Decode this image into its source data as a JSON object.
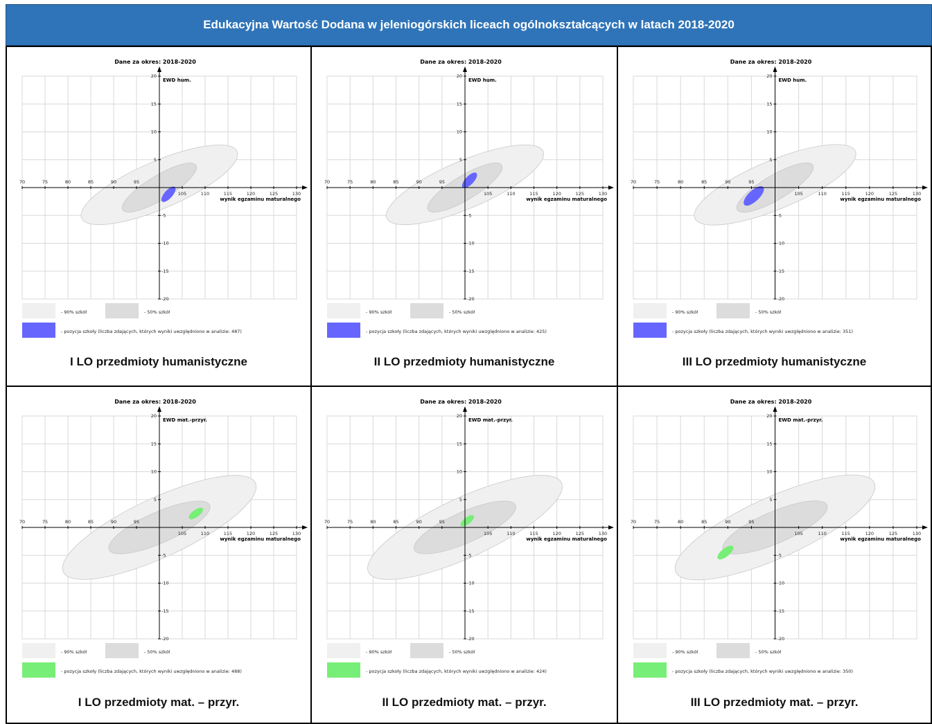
{
  "header": {
    "title": "Edukacyjna Wartość Dodana w jeleniogórskich liceach ogólnokształcących  w latach 2018-2020"
  },
  "legend": {
    "label_90": "- 90% szkół",
    "label_50": "- 50% szkół",
    "color_90": "#f0f0f0",
    "color_50": "#dcdcdc"
  },
  "colors": {
    "hum": "#6666ff",
    "mat": "#77ee77",
    "banner": "#2f74b8"
  },
  "chart_data": [
    {
      "type": "scatter",
      "title": "Dane za okres: 2018-2020",
      "xlabel": "wynik egzaminu maturalnego",
      "ylabel": "EWD hum.",
      "xlim": [
        70,
        130
      ],
      "ylim": [
        -20,
        20
      ],
      "xticks": [
        "70",
        "75",
        "80",
        "85",
        "90",
        "95",
        "105",
        "110",
        "115",
        "120",
        "125",
        "130"
      ],
      "yticks": [
        "20",
        "15",
        "10",
        "5",
        "-5",
        "-10",
        "-15",
        "-20"
      ],
      "band90": {
        "cx": 100,
        "cy": 0.5,
        "x_half": 17,
        "y_half": 6
      },
      "band50": {
        "cx": 100,
        "cy": 0,
        "x_half": 8,
        "y_half": 4
      },
      "school": {
        "x": 102,
        "y": -1.2,
        "x_half": 1.4,
        "y_half": 1.3,
        "color": "#6666ff"
      },
      "legend_position": "bottom-left",
      "position_label": "- pozycja szkoły (liczba zdających, których wyniki uwzględniono w analizie: 487)",
      "caption": "I LO przedmioty humanistyczne"
    },
    {
      "type": "scatter",
      "title": "Dane za okres: 2018-2020",
      "xlabel": "wynik egzaminu maturalnego",
      "ylabel": "EWD hum.",
      "xlim": [
        70,
        130
      ],
      "ylim": [
        -20,
        20
      ],
      "xticks": [
        "70",
        "75",
        "80",
        "85",
        "90",
        "95",
        "105",
        "110",
        "115",
        "120",
        "125",
        "130"
      ],
      "yticks": [
        "20",
        "15",
        "10",
        "5",
        "-5",
        "-10",
        "-15",
        "-20"
      ],
      "band90": {
        "cx": 100,
        "cy": 0.5,
        "x_half": 17,
        "y_half": 6
      },
      "band50": {
        "cx": 100,
        "cy": 0,
        "x_half": 8,
        "y_half": 4
      },
      "school": {
        "x": 101,
        "y": 1.3,
        "x_half": 1.5,
        "y_half": 1.3,
        "color": "#6666ff"
      },
      "legend_position": "bottom-left",
      "position_label": "- pozycja szkoły (liczba zdających, których wyniki uwzględniono w analizie: 425)",
      "caption": "II LO przedmioty humanistyczne"
    },
    {
      "type": "scatter",
      "title": "Dane za okres: 2018-2020",
      "xlabel": "wynik egzaminu maturalnego",
      "ylabel": "EWD hum.",
      "xlim": [
        70,
        130
      ],
      "ylim": [
        -20,
        20
      ],
      "xticks": [
        "70",
        "75",
        "80",
        "85",
        "90",
        "95",
        "105",
        "110",
        "115",
        "120",
        "125",
        "130"
      ],
      "yticks": [
        "20",
        "15",
        "10",
        "5",
        "-5",
        "-10",
        "-15",
        "-20"
      ],
      "band90": {
        "cx": 100,
        "cy": 0.5,
        "x_half": 17,
        "y_half": 6
      },
      "band50": {
        "cx": 100,
        "cy": 0,
        "x_half": 8,
        "y_half": 4
      },
      "school": {
        "x": 95.5,
        "y": -1.5,
        "x_half": 2,
        "y_half": 1.6,
        "color": "#6666ff"
      },
      "legend_position": "bottom-left",
      "position_label": "- pozycja szkoły (liczba zdających, których wyniki uwzględniono w analizie: 351)",
      "caption": "III LO przedmioty humanistyczne"
    },
    {
      "type": "scatter",
      "title": "Dane za okres: 2018-2020",
      "xlabel": "wynik egzaminu maturalnego",
      "ylabel": "EWD mat.-przyr.",
      "xlim": [
        70,
        130
      ],
      "ylim": [
        -20,
        20
      ],
      "xticks": [
        "70",
        "75",
        "80",
        "85",
        "90",
        "95",
        "105",
        "110",
        "115",
        "120",
        "125",
        "130"
      ],
      "yticks": [
        "20",
        "15",
        "10",
        "5",
        "-5",
        "-10",
        "-15",
        "-20"
      ],
      "band90": {
        "cx": 100,
        "cy": 0,
        "x_half": 21,
        "y_half": 8
      },
      "band50": {
        "cx": 100,
        "cy": 0,
        "x_half": 11,
        "y_half": 4
      },
      "school": {
        "x": 108,
        "y": 2.5,
        "x_half": 1.5,
        "y_half": 0.9,
        "color": "#77ee77"
      },
      "legend_position": "bottom-left",
      "position_label": "- pozycja szkoły (liczba zdających, których wyniki uwzględniono w analizie: 488)",
      "caption": "I LO przedmioty mat. – przyr."
    },
    {
      "type": "scatter",
      "title": "Dane za okres: 2018-2020",
      "xlabel": "wynik egzaminu maturalnego",
      "ylabel": "EWD mat.-przyr.",
      "xlim": [
        70,
        130
      ],
      "ylim": [
        -20,
        20
      ],
      "xticks": [
        "70",
        "75",
        "80",
        "85",
        "90",
        "95",
        "105",
        "110",
        "115",
        "120",
        "125",
        "130"
      ],
      "yticks": [
        "20",
        "15",
        "10",
        "5",
        "-5",
        "-10",
        "-15",
        "-20"
      ],
      "band90": {
        "cx": 100,
        "cy": 0,
        "x_half": 21,
        "y_half": 8
      },
      "band50": {
        "cx": 100,
        "cy": 0,
        "x_half": 11,
        "y_half": 4
      },
      "school": {
        "x": 100.5,
        "y": 1.2,
        "x_half": 1.4,
        "y_half": 0.9,
        "color": "#77ee77"
      },
      "legend_position": "bottom-left",
      "position_label": "- pozycja szkoły (liczba zdających, których wyniki uwzględniono w analizie: 424)",
      "caption": "II LO przedmioty mat. – przyr."
    },
    {
      "type": "scatter",
      "title": "Dane za okres: 2018-2020",
      "xlabel": "wynik egzaminu maturalnego",
      "ylabel": "EWD mat.-przyr.",
      "xlim": [
        70,
        130
      ],
      "ylim": [
        -20,
        20
      ],
      "xticks": [
        "70",
        "75",
        "80",
        "85",
        "90",
        "95",
        "105",
        "110",
        "115",
        "120",
        "125",
        "130"
      ],
      "yticks": [
        "20",
        "15",
        "10",
        "5",
        "-5",
        "-10",
        "-15",
        "-20"
      ],
      "band90": {
        "cx": 100,
        "cy": 0,
        "x_half": 21,
        "y_half": 8
      },
      "band50": {
        "cx": 100,
        "cy": 0,
        "x_half": 11,
        "y_half": 4
      },
      "school": {
        "x": 89.5,
        "y": -4.5,
        "x_half": 1.6,
        "y_half": 1.1,
        "color": "#77ee77"
      },
      "legend_position": "bottom-left",
      "position_label": "- pozycja szkoły (liczba zdających, których wyniki uwzględniono w analizie: 350)",
      "caption": "III LO przedmioty mat. – przyr."
    }
  ]
}
